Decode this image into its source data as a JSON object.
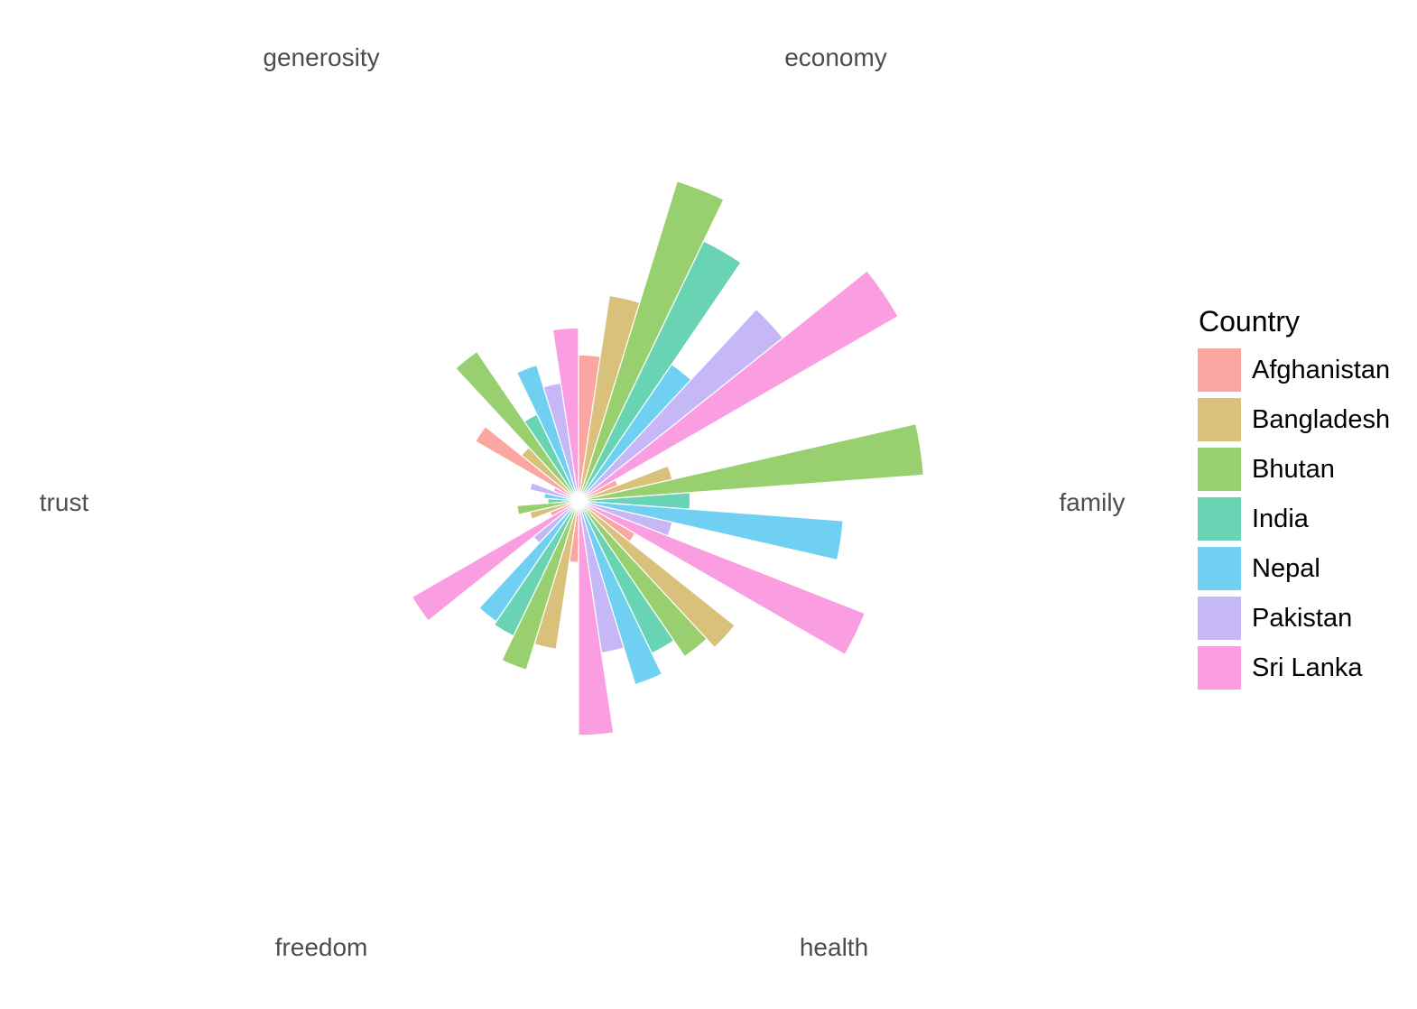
{
  "page": {
    "background": "#FFFFFF",
    "axis_label_color": "#4D4D4D",
    "legend_text_color": "#000000"
  },
  "chart_data": {
    "type": "bar",
    "subtype": "polar_coxcomb",
    "orientation": "clockwise_from_top",
    "category_angle_span_deg": 60,
    "bars_per_category": 7,
    "gridlines": false,
    "value_axis": {
      "min": 0,
      "max": 1.0,
      "ticks_shown": false
    },
    "categories": [
      "economy",
      "family",
      "health",
      "freedom",
      "trust",
      "generosity"
    ],
    "legend": {
      "title": "Country",
      "position": "right"
    },
    "series": [
      {
        "name": "Afghanistan",
        "color": "#FBA6A0",
        "values": [
          0.38,
          0.11,
          0.17,
          0.16,
          0.08,
          0.31
        ]
      },
      {
        "name": "Bangladesh",
        "color": "#D9C17C",
        "values": [
          0.54,
          0.25,
          0.52,
          0.39,
          0.13,
          0.19
        ]
      },
      {
        "name": "Bhutan",
        "color": "#98CF6F",
        "values": [
          0.87,
          0.9,
          0.49,
          0.46,
          0.16,
          0.47
        ]
      },
      {
        "name": "India",
        "color": "#68D4B4",
        "values": [
          0.75,
          0.29,
          0.44,
          0.39,
          0.08,
          0.25
        ]
      },
      {
        "name": "Nepal",
        "color": "#6FD0F2",
        "values": [
          0.43,
          0.69,
          0.5,
          0.38,
          0.09,
          0.37
        ]
      },
      {
        "name": "Pakistan",
        "color": "#C6B7F7",
        "values": [
          0.68,
          0.25,
          0.4,
          0.15,
          0.13,
          0.31
        ]
      },
      {
        "name": "Sri Lanka",
        "color": "#FA9EE1",
        "values": [
          0.96,
          0.8,
          0.61,
          0.5,
          0.07,
          0.45
        ]
      }
    ]
  }
}
